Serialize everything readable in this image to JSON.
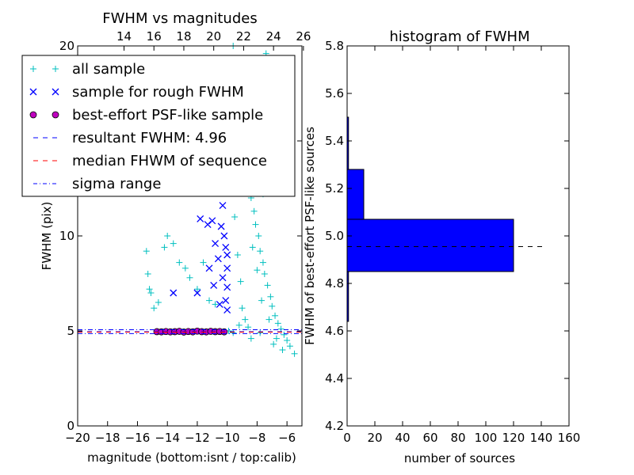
{
  "chart_data": [
    {
      "type": "scatter",
      "title": "FWHM vs magnitudes",
      "xlabel": "magnitude (bottom:isnt / top:calib)",
      "ylabel": "FWHM (pix)",
      "xlim": [
        -20,
        -5
      ],
      "ylim": [
        0,
        20
      ],
      "x_ticks": [
        "−20",
        "−18",
        "−16",
        "−14",
        "−12",
        "−10",
        "−8",
        "−6"
      ],
      "x_tick_values": [
        -20,
        -18,
        -16,
        -14,
        -12,
        -10,
        -8,
        -6
      ],
      "top_x_ticks": [
        "14",
        "16",
        "18",
        "20",
        "22",
        "24",
        "26"
      ],
      "top_x_tick_values": [
        -16.9,
        -14.9,
        -12.9,
        -10.9,
        -8.9,
        -6.9,
        -4.9
      ],
      "y_ticks": [
        "0",
        "5",
        "10",
        "15",
        "20"
      ],
      "y_tick_values": [
        0,
        5,
        10,
        15,
        20
      ],
      "legend": {
        "placement": "upper-left",
        "entries": [
          {
            "label": "all sample",
            "marker": "plus",
            "color": "#00bfbf"
          },
          {
            "label": "sample for rough FWHM",
            "marker": "x",
            "color": "#0000ff"
          },
          {
            "label": "best-effort PSF-like sample",
            "marker": "circle",
            "color": "#bf00bf"
          },
          {
            "label": "resultant FWHM: 4.96",
            "marker": "dash",
            "color": "#0000ff"
          },
          {
            "label": "median FHWM of sequence",
            "marker": "dash",
            "color": "#ff0000"
          },
          {
            "label": "sigma range",
            "marker": "dashdot",
            "color": "#0000ff"
          }
        ]
      },
      "reference_lines": {
        "resultant_fwhm": 4.96,
        "median_sequence": 4.94,
        "sigma_range": [
          4.86,
          5.06
        ]
      },
      "series": [
        {
          "name": "all sample",
          "marker": "plus",
          "color": "#00bfbf",
          "points": [
            [
              -15.4,
              9.2
            ],
            [
              -15.3,
              8.0
            ],
            [
              -15.2,
              7.2
            ],
            [
              -15.1,
              7.0
            ],
            [
              -14.9,
              6.2
            ],
            [
              -14.6,
              6.5
            ],
            [
              -14.2,
              9.4
            ],
            [
              -14.0,
              10.0
            ],
            [
              -13.6,
              9.6
            ],
            [
              -13.2,
              8.6
            ],
            [
              -12.8,
              8.3
            ],
            [
              -12.5,
              7.8
            ],
            [
              -12.0,
              7.2
            ],
            [
              -11.6,
              8.6
            ],
            [
              -11.2,
              6.6
            ],
            [
              -10.8,
              6.4
            ],
            [
              -9.6,
              20.0
            ],
            [
              -9.4,
              17.5
            ],
            [
              -9.2,
              16.2
            ],
            [
              -9.0,
              15.0
            ],
            [
              -8.9,
              14.0
            ],
            [
              -8.7,
              13.2
            ],
            [
              -8.5,
              12.5
            ],
            [
              -8.4,
              12.0
            ],
            [
              -8.2,
              11.3
            ],
            [
              -8.1,
              10.6
            ],
            [
              -7.9,
              10.0
            ],
            [
              -7.8,
              9.2
            ],
            [
              -7.6,
              8.6
            ],
            [
              -7.5,
              8.0
            ],
            [
              -7.3,
              7.4
            ],
            [
              -7.1,
              6.8
            ],
            [
              -7.0,
              6.3
            ],
            [
              -6.8,
              5.8
            ],
            [
              -6.6,
              5.4
            ],
            [
              -6.4,
              5.1
            ],
            [
              -6.2,
              4.8
            ],
            [
              -6.0,
              4.5
            ],
            [
              -5.8,
              4.2
            ],
            [
              -5.5,
              3.8
            ],
            [
              -8.6,
              19.2
            ],
            [
              -8.0,
              18.6
            ],
            [
              -7.4,
              19.6
            ],
            [
              -6.9,
              18.0
            ],
            [
              -6.5,
              16.8
            ],
            [
              -9.5,
              11.0
            ],
            [
              -9.3,
              9.0
            ],
            [
              -9.1,
              7.6
            ],
            [
              -9.0,
              6.2
            ],
            [
              -8.8,
              5.6
            ],
            [
              -8.6,
              5.2
            ],
            [
              -8.3,
              9.4
            ],
            [
              -8.0,
              8.2
            ],
            [
              -7.7,
              6.6
            ],
            [
              -7.2,
              5.6
            ],
            [
              -6.7,
              4.6
            ],
            [
              -6.3,
              4.0
            ],
            [
              -9.8,
              14.5
            ],
            [
              -9.7,
              12.8
            ],
            [
              -9.4,
              13.6
            ],
            [
              -8.8,
              16.8
            ],
            [
              -8.2,
              14.6
            ],
            [
              -7.6,
              12.2
            ],
            [
              -9.9,
              5.0
            ],
            [
              -9.6,
              4.9
            ],
            [
              -9.2,
              5.3
            ],
            [
              -8.4,
              4.6
            ],
            [
              -7.8,
              4.9
            ],
            [
              -6.9,
              4.3
            ]
          ]
        },
        {
          "name": "sample for rough FWHM",
          "marker": "x",
          "color": "#0000ff",
          "points": [
            [
              -13.6,
              7.0
            ],
            [
              -11.8,
              10.9
            ],
            [
              -11.3,
              10.6
            ],
            [
              -11.0,
              10.8
            ],
            [
              -10.8,
              9.6
            ],
            [
              -10.6,
              8.8
            ],
            [
              -10.4,
              10.5
            ],
            [
              -10.3,
              11.6
            ],
            [
              -10.2,
              12.5
            ],
            [
              -10.1,
              9.4
            ],
            [
              -10.0,
              8.3
            ],
            [
              -10.0,
              7.3
            ],
            [
              -10.1,
              6.6
            ],
            [
              -10.0,
              6.1
            ],
            [
              -11.2,
              8.3
            ],
            [
              -10.9,
              7.4
            ],
            [
              -10.5,
              6.4
            ],
            [
              -10.3,
              7.8
            ],
            [
              -10.2,
              10.0
            ],
            [
              -10.0,
              9.0
            ],
            [
              -12.0,
              7.0
            ]
          ]
        },
        {
          "name": "best-effort PSF-like sample",
          "marker": "circle",
          "color": "#bf00bf",
          "points": [
            [
              -14.7,
              4.96
            ],
            [
              -14.4,
              4.95
            ],
            [
              -14.1,
              4.97
            ],
            [
              -13.8,
              4.95
            ],
            [
              -13.5,
              4.96
            ],
            [
              -13.2,
              4.98
            ],
            [
              -12.9,
              4.94
            ],
            [
              -12.6,
              4.97
            ],
            [
              -12.3,
              4.95
            ],
            [
              -12.0,
              4.99
            ],
            [
              -11.7,
              4.96
            ],
            [
              -11.4,
              4.95
            ],
            [
              -11.1,
              4.98
            ],
            [
              -10.8,
              4.96
            ],
            [
              -10.5,
              4.97
            ],
            [
              -10.2,
              4.95
            ]
          ]
        }
      ]
    },
    {
      "type": "bar",
      "orientation": "horizontal",
      "title": "histogram of FWHM",
      "xlabel": "number of sources",
      "ylabel": "FWHM of best-effort PSF-like sources",
      "xlim": [
        0,
        160
      ],
      "ylim": [
        4.2,
        5.8
      ],
      "x_ticks": [
        "0",
        "20",
        "40",
        "60",
        "80",
        "100",
        "120",
        "140",
        "160"
      ],
      "x_tick_values": [
        0,
        20,
        40,
        60,
        80,
        100,
        120,
        140,
        160
      ],
      "y_ticks": [
        "4.2",
        "4.4",
        "4.6",
        "4.8",
        "5.0",
        "5.2",
        "5.4",
        "5.6",
        "5.8"
      ],
      "y_tick_values": [
        4.2,
        4.4,
        4.6,
        4.8,
        5.0,
        5.2,
        5.4,
        5.6,
        5.8
      ],
      "bar_color": "#0000ff",
      "bins": [
        {
          "low": 4.64,
          "high": 4.85,
          "count": 1
        },
        {
          "low": 4.85,
          "high": 5.07,
          "count": 120
        },
        {
          "low": 5.07,
          "high": 5.28,
          "count": 12
        },
        {
          "low": 5.28,
          "high": 5.5,
          "count": 1
        }
      ],
      "reference_line": {
        "value": 4.955,
        "x_range": [
          0,
          143
        ]
      }
    }
  ]
}
